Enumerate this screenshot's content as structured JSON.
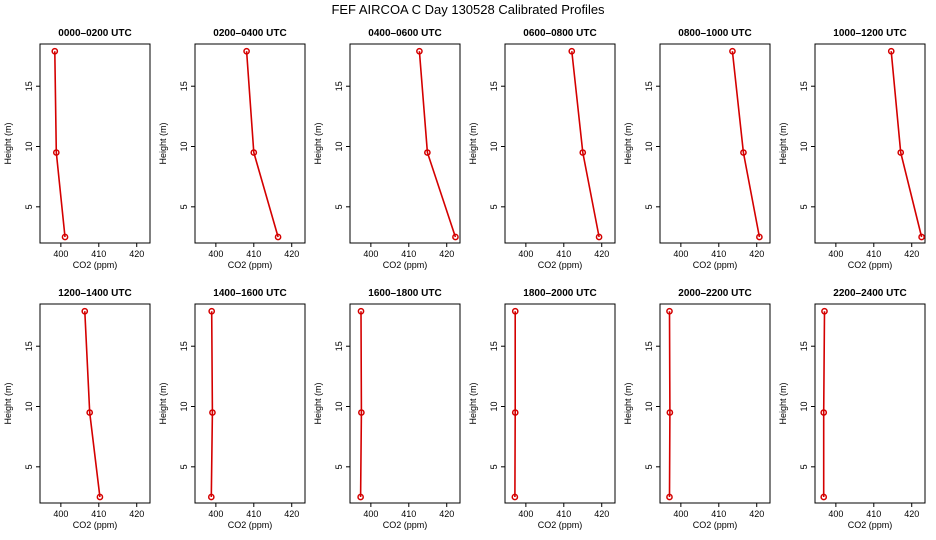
{
  "figure": {
    "title": "FEF AIRCOA C  Day 130528  Calibrated Profiles",
    "series_color": "#d40000"
  },
  "chart_data": [
    {
      "type": "line",
      "title": "0000–0200 UTC",
      "xlabel": "CO2 (ppm)",
      "ylabel": "Height (m)",
      "xlim": [
        394.5,
        423.5
      ],
      "ylim": [
        2,
        18.5
      ],
      "xticks": [
        400,
        410,
        420
      ],
      "yticks": [
        5,
        10,
        15
      ],
      "grid": false,
      "series": [
        {
          "x": [
            398.4,
            398.8,
            401.1
          ],
          "y": [
            17.9,
            9.5,
            2.5
          ]
        }
      ]
    },
    {
      "type": "line",
      "title": "0200–0400 UTC",
      "xlabel": "CO2 (ppm)",
      "ylabel": "Height (m)",
      "xlim": [
        394.5,
        423.5
      ],
      "ylim": [
        2,
        18.5
      ],
      "xticks": [
        400,
        410,
        420
      ],
      "yticks": [
        5,
        10,
        15
      ],
      "grid": false,
      "series": [
        {
          "x": [
            408.1,
            410.0,
            416.4
          ],
          "y": [
            17.9,
            9.5,
            2.5
          ]
        }
      ]
    },
    {
      "type": "line",
      "title": "0400–0600 UTC",
      "xlabel": "CO2 (ppm)",
      "ylabel": "Height (m)",
      "xlim": [
        394.5,
        423.5
      ],
      "ylim": [
        2,
        18.5
      ],
      "xticks": [
        400,
        410,
        420
      ],
      "yticks": [
        5,
        10,
        15
      ],
      "grid": false,
      "series": [
        {
          "x": [
            412.8,
            414.9,
            422.3
          ],
          "y": [
            17.9,
            9.5,
            2.5
          ]
        }
      ]
    },
    {
      "type": "line",
      "title": "0600–0800 UTC",
      "xlabel": "CO2 (ppm)",
      "ylabel": "Height (m)",
      "xlim": [
        394.5,
        423.5
      ],
      "ylim": [
        2,
        18.5
      ],
      "xticks": [
        400,
        410,
        420
      ],
      "yticks": [
        5,
        10,
        15
      ],
      "grid": false,
      "series": [
        {
          "x": [
            412.1,
            415.0,
            419.3
          ],
          "y": [
            17.9,
            9.5,
            2.5
          ]
        }
      ]
    },
    {
      "type": "line",
      "title": "0800–1000 UTC",
      "xlabel": "CO2 (ppm)",
      "ylabel": "Height (m)",
      "xlim": [
        394.5,
        423.5
      ],
      "ylim": [
        2,
        18.5
      ],
      "xticks": [
        400,
        410,
        420
      ],
      "yticks": [
        5,
        10,
        15
      ],
      "grid": false,
      "series": [
        {
          "x": [
            413.6,
            416.5,
            420.7
          ],
          "y": [
            17.9,
            9.5,
            2.5
          ]
        }
      ]
    },
    {
      "type": "line",
      "title": "1000–1200 UTC",
      "xlabel": "CO2 (ppm)",
      "ylabel": "Height (m)",
      "xlim": [
        394.5,
        423.5
      ],
      "ylim": [
        2,
        18.5
      ],
      "xticks": [
        400,
        410,
        420
      ],
      "yticks": [
        5,
        10,
        15
      ],
      "grid": false,
      "series": [
        {
          "x": [
            414.6,
            417.1,
            422.6
          ],
          "y": [
            17.9,
            9.5,
            2.5
          ]
        }
      ]
    },
    {
      "type": "line",
      "title": "1200–1400 UTC",
      "xlabel": "CO2 (ppm)",
      "ylabel": "Height (m)",
      "xlim": [
        394.5,
        423.5
      ],
      "ylim": [
        2,
        18.5
      ],
      "xticks": [
        400,
        410,
        420
      ],
      "yticks": [
        5,
        10,
        15
      ],
      "grid": false,
      "series": [
        {
          "x": [
            406.3,
            407.6,
            410.3
          ],
          "y": [
            17.9,
            9.5,
            2.5
          ]
        }
      ]
    },
    {
      "type": "line",
      "title": "1400–1600 UTC",
      "xlabel": "CO2 (ppm)",
      "ylabel": "Height (m)",
      "xlim": [
        394.5,
        423.5
      ],
      "ylim": [
        2,
        18.5
      ],
      "xticks": [
        400,
        410,
        420
      ],
      "yticks": [
        5,
        10,
        15
      ],
      "grid": false,
      "series": [
        {
          "x": [
            398.9,
            399.1,
            398.8
          ],
          "y": [
            17.9,
            9.5,
            2.5
          ]
        }
      ]
    },
    {
      "type": "line",
      "title": "1600–1800 UTC",
      "xlabel": "CO2 (ppm)",
      "ylabel": "Height (m)",
      "xlim": [
        394.5,
        423.5
      ],
      "ylim": [
        2,
        18.5
      ],
      "xticks": [
        400,
        410,
        420
      ],
      "yticks": [
        5,
        10,
        15
      ],
      "grid": false,
      "series": [
        {
          "x": [
            397.4,
            397.5,
            397.3
          ],
          "y": [
            17.9,
            9.5,
            2.5
          ]
        }
      ]
    },
    {
      "type": "line",
      "title": "1800–2000 UTC",
      "xlabel": "CO2 (ppm)",
      "ylabel": "Height (m)",
      "xlim": [
        394.5,
        423.5
      ],
      "ylim": [
        2,
        18.5
      ],
      "xticks": [
        400,
        410,
        420
      ],
      "yticks": [
        5,
        10,
        15
      ],
      "grid": false,
      "series": [
        {
          "x": [
            397.2,
            397.2,
            397.1
          ],
          "y": [
            17.9,
            9.5,
            2.5
          ]
        }
      ]
    },
    {
      "type": "line",
      "title": "2000–2200 UTC",
      "xlabel": "CO2 (ppm)",
      "ylabel": "Height (m)",
      "xlim": [
        394.5,
        423.5
      ],
      "ylim": [
        2,
        18.5
      ],
      "xticks": [
        400,
        410,
        420
      ],
      "yticks": [
        5,
        10,
        15
      ],
      "grid": false,
      "series": [
        {
          "x": [
            397.0,
            397.1,
            397.0
          ],
          "y": [
            17.9,
            9.5,
            2.5
          ]
        }
      ]
    },
    {
      "type": "line",
      "title": "2200–2400 UTC",
      "xlabel": "CO2 (ppm)",
      "ylabel": "Height (m)",
      "xlim": [
        394.5,
        423.5
      ],
      "ylim": [
        2,
        18.5
      ],
      "xticks": [
        400,
        410,
        420
      ],
      "yticks": [
        5,
        10,
        15
      ],
      "grid": false,
      "series": [
        {
          "x": [
            397.0,
            396.8,
            396.8
          ],
          "y": [
            17.9,
            9.5,
            2.5
          ]
        }
      ]
    }
  ]
}
